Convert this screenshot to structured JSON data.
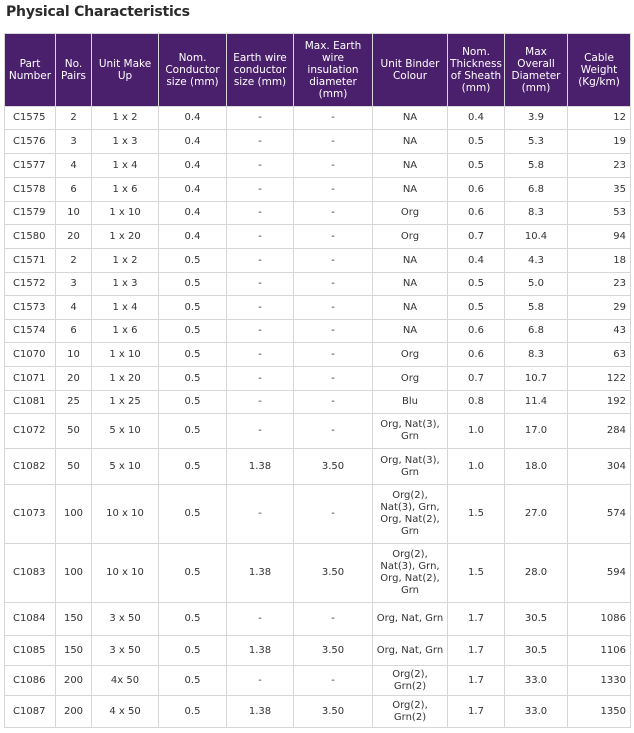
{
  "title": "Physical Characteristics",
  "columns": [
    "Part Number",
    "No. Pairs",
    "Unit Make Up",
    "Nom. Conductor size (mm)",
    "Earth wire conductor size (mm)",
    "Max. Earth wire insulation diameter (mm)",
    "Unit Binder Colour",
    "Nom. Thickness of Sheath (mm)",
    "Max Overall Diameter (mm)",
    "Cable Weight (Kg/km)"
  ],
  "rows": [
    [
      "C1575",
      "2",
      "1 x 2",
      "0.4",
      "-",
      "-",
      "NA",
      "0.4",
      "3.9",
      "12"
    ],
    [
      "C1576",
      "3",
      "1 x 3",
      "0.4",
      "-",
      "-",
      "NA",
      "0.5",
      "5.3",
      "19"
    ],
    [
      "C1577",
      "4",
      "1 x 4",
      "0.4",
      "-",
      "-",
      "NA",
      "0.5",
      "5.8",
      "23"
    ],
    [
      "C1578",
      "6",
      "1 x 6",
      "0.4",
      "-",
      "-",
      "NA",
      "0.6",
      "6.8",
      "35"
    ],
    [
      "C1579",
      "10",
      "1 x 10",
      "0.4",
      "-",
      "-",
      "Org",
      "0.6",
      "8.3",
      "53"
    ],
    [
      "C1580",
      "20",
      "1 x 20",
      "0.4",
      "-",
      "-",
      "Org",
      "0.7",
      "10.4",
      "94"
    ],
    [
      "C1571",
      "2",
      "1 x 2",
      "0.5",
      "-",
      "-",
      "NA",
      "0.4",
      "4.3",
      "18"
    ],
    [
      "C1572",
      "3",
      "1 x 3",
      "0.5",
      "-",
      "-",
      "NA",
      "0.5",
      "5.0",
      "23"
    ],
    [
      "C1573",
      "4",
      "1 x 4",
      "0.5",
      "-",
      "-",
      "NA",
      "0.5",
      "5.8",
      "29"
    ],
    [
      "C1574",
      "6",
      "1 x 6",
      "0.5",
      "-",
      "-",
      "NA",
      "0.6",
      "6.8",
      "43"
    ],
    [
      "C1070",
      "10",
      "1 x 10",
      "0.5",
      "-",
      "-",
      "Org",
      "0.6",
      "8.3",
      "63"
    ],
    [
      "C1071",
      "20",
      "1 x 20",
      "0.5",
      "-",
      "-",
      "Org",
      "0.7",
      "10.7",
      "122"
    ],
    [
      "C1081",
      "25",
      "1 x 25",
      "0.5",
      "-",
      "-",
      "Blu",
      "0.8",
      "11.4",
      "192"
    ],
    [
      "C1072",
      "50",
      "5 x 10",
      "0.5",
      "-",
      "-",
      "Org, Nat(3), Grn",
      "1.0",
      "17.0",
      "284"
    ],
    [
      "C1082",
      "50",
      "5 x 10",
      "0.5",
      "1.38",
      "3.50",
      "Org, Nat(3), Grn",
      "1.0",
      "18.0",
      "304"
    ],
    [
      "C1073",
      "100",
      "10 x 10",
      "0.5",
      "-",
      "-",
      "Org(2), Nat(3), Grn, Org, Nat(2), Grn",
      "1.5",
      "27.0",
      "574"
    ],
    [
      "C1083",
      "100",
      "10 x 10",
      "0.5",
      "1.38",
      "3.50",
      "Org(2), Nat(3), Grn, Org, Nat(2), Grn",
      "1.5",
      "28.0",
      "594"
    ],
    [
      "C1084",
      "150",
      "3 x 50",
      "0.5",
      "-",
      "-",
      "Org, Nat, Grn",
      "1.7",
      "30.5",
      "1086"
    ],
    [
      "C1085",
      "150",
      "3 x 50",
      "0.5",
      "1.38",
      "3.50",
      "Org, Nat, Grn",
      "1.7",
      "30.5",
      "1106"
    ],
    [
      "C1086",
      "200",
      "4x 50",
      "0.5",
      "-",
      "-",
      "Org(2), Grn(2)",
      "1.7",
      "33.0",
      "1330"
    ],
    [
      "C1087",
      "200",
      "4 x 50",
      "0.5",
      "1.38",
      "3.50",
      "Org(2), Grn(2)",
      "1.7",
      "33.0",
      "1350"
    ]
  ],
  "colors": {
    "header_bg": "#4a1f6b",
    "header_text": "#ffffff",
    "grid": "#d7d7d7"
  }
}
